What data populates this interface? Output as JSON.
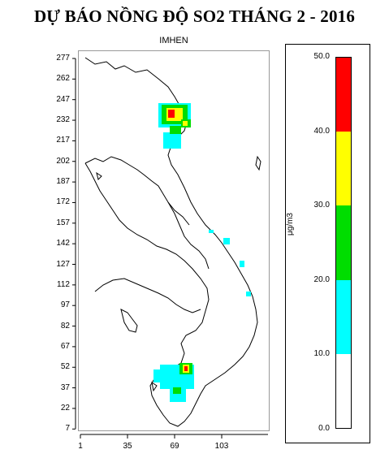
{
  "title": "DỰ BÁO NỒNG ĐỘ SO2 THÁNG 2 - 2016",
  "subtitle": "IMHEN",
  "y_ticks": [
    "277",
    "262",
    "247",
    "232",
    "217",
    "202",
    "187",
    "172",
    "157",
    "142",
    "127",
    "112",
    "97",
    "82",
    "67",
    "52",
    "37",
    "22",
    "7"
  ],
  "x_ticks": [
    "1",
    "35",
    "69",
    "103"
  ],
  "legend": {
    "unit": "μg/m3",
    "ticks": [
      "50.0",
      "40.0",
      "30.0",
      "20.0",
      "10.0",
      "0.0"
    ],
    "classes": [
      {
        "range": "40-50",
        "color": "#ff0000"
      },
      {
        "range": "30-40",
        "color": "#ffff00"
      },
      {
        "range": "20-30",
        "color": "#00dd00"
      },
      {
        "range": "10-20",
        "color": "#00ffff"
      },
      {
        "range": "0-10",
        "color": "#ffffff"
      }
    ]
  }
}
